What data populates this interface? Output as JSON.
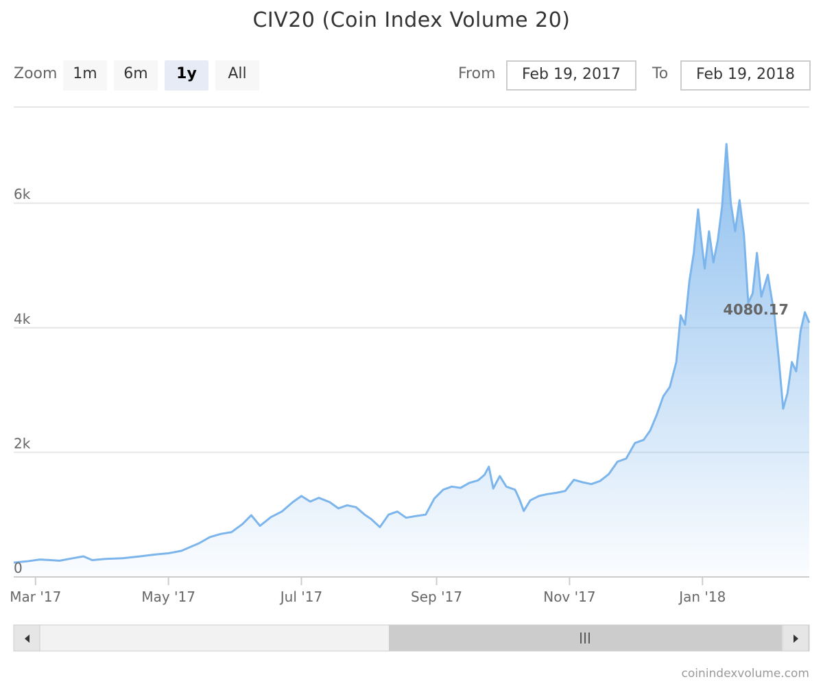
{
  "title": "CIV20 (Coin Index Volume 20)",
  "range_selector": {
    "zoom_label": "Zoom",
    "buttons": [
      {
        "label": "1m",
        "active": false
      },
      {
        "label": "6m",
        "active": false
      },
      {
        "label": "1y",
        "active": true
      },
      {
        "label": "All",
        "active": false
      }
    ],
    "from_label": "From",
    "from_value": "Feb 19, 2017",
    "to_label": "To",
    "to_value": "Feb 19, 2018"
  },
  "credits": "coinindexvolume.com",
  "colors": {
    "line": "#7cb5ec",
    "area_top": "#8fbce8",
    "grid": "#e6e6e6",
    "axis_label": "#666666"
  },
  "chart_data": {
    "type": "area",
    "title": "CIV20 (Coin Index Volume 20)",
    "xlabel": "",
    "ylabel": "",
    "ylim": [
      0,
      7500
    ],
    "xlim": [
      "2017-02-19",
      "2018-02-19"
    ],
    "y_ticks": [
      {
        "value": 0,
        "label": "0"
      },
      {
        "value": 2000,
        "label": "2k"
      },
      {
        "value": 4000,
        "label": "4k"
      },
      {
        "value": 6000,
        "label": "6k"
      }
    ],
    "x_ticks": [
      {
        "date": "2017-03-01",
        "label": "Mar '17"
      },
      {
        "date": "2017-05-01",
        "label": "May '17"
      },
      {
        "date": "2017-07-01",
        "label": "Jul '17"
      },
      {
        "date": "2017-09-01",
        "label": "Sep '17"
      },
      {
        "date": "2017-11-01",
        "label": "Nov '17"
      },
      {
        "date": "2018-01-01",
        "label": "Jan '18"
      }
    ],
    "last_value_label": "4080.17",
    "grid": true,
    "legend": "none",
    "series": [
      {
        "values": [
          [
            "2017-02-19",
            230
          ],
          [
            "2017-02-25",
            250
          ],
          [
            "2017-03-03",
            280
          ],
          [
            "2017-03-08",
            270
          ],
          [
            "2017-03-12",
            260
          ],
          [
            "2017-03-18",
            300
          ],
          [
            "2017-03-23",
            330
          ],
          [
            "2017-03-27",
            270
          ],
          [
            "2017-04-02",
            290
          ],
          [
            "2017-04-10",
            300
          ],
          [
            "2017-04-18",
            330
          ],
          [
            "2017-04-25",
            360
          ],
          [
            "2017-05-01",
            380
          ],
          [
            "2017-05-07",
            420
          ],
          [
            "2017-05-11",
            480
          ],
          [
            "2017-05-15",
            540
          ],
          [
            "2017-05-20",
            640
          ],
          [
            "2017-05-25",
            690
          ],
          [
            "2017-05-30",
            720
          ],
          [
            "2017-06-04",
            850
          ],
          [
            "2017-06-08",
            990
          ],
          [
            "2017-06-12",
            820
          ],
          [
            "2017-06-17",
            960
          ],
          [
            "2017-06-22",
            1050
          ],
          [
            "2017-06-27",
            1200
          ],
          [
            "2017-07-01",
            1300
          ],
          [
            "2017-07-05",
            1210
          ],
          [
            "2017-07-09",
            1270
          ],
          [
            "2017-07-14",
            1200
          ],
          [
            "2017-07-18",
            1100
          ],
          [
            "2017-07-22",
            1150
          ],
          [
            "2017-07-26",
            1120
          ],
          [
            "2017-07-30",
            1000
          ],
          [
            "2017-08-02",
            930
          ],
          [
            "2017-08-06",
            800
          ],
          [
            "2017-08-10",
            1000
          ],
          [
            "2017-08-14",
            1050
          ],
          [
            "2017-08-18",
            950
          ],
          [
            "2017-08-23",
            980
          ],
          [
            "2017-08-27",
            1000
          ],
          [
            "2017-08-31",
            1260
          ],
          [
            "2017-09-04",
            1400
          ],
          [
            "2017-09-08",
            1450
          ],
          [
            "2017-09-12",
            1430
          ],
          [
            "2017-09-16",
            1510
          ],
          [
            "2017-09-20",
            1550
          ],
          [
            "2017-09-23",
            1640
          ],
          [
            "2017-09-25",
            1770
          ],
          [
            "2017-09-27",
            1420
          ],
          [
            "2017-09-30",
            1620
          ],
          [
            "2017-10-03",
            1450
          ],
          [
            "2017-10-07",
            1400
          ],
          [
            "2017-10-09",
            1250
          ],
          [
            "2017-10-11",
            1060
          ],
          [
            "2017-10-14",
            1230
          ],
          [
            "2017-10-18",
            1300
          ],
          [
            "2017-10-22",
            1330
          ],
          [
            "2017-10-26",
            1350
          ],
          [
            "2017-10-30",
            1380
          ],
          [
            "2017-11-03",
            1560
          ],
          [
            "2017-11-07",
            1520
          ],
          [
            "2017-11-11",
            1490
          ],
          [
            "2017-11-15",
            1540
          ],
          [
            "2017-11-19",
            1650
          ],
          [
            "2017-11-23",
            1850
          ],
          [
            "2017-11-27",
            1900
          ],
          [
            "2017-12-01",
            2150
          ],
          [
            "2017-12-05",
            2200
          ],
          [
            "2017-12-08",
            2350
          ],
          [
            "2017-12-11",
            2600
          ],
          [
            "2017-12-14",
            2900
          ],
          [
            "2017-12-17",
            3050
          ],
          [
            "2017-12-20",
            3450
          ],
          [
            "2017-12-22",
            4200
          ],
          [
            "2017-12-24",
            4050
          ],
          [
            "2017-12-26",
            4750
          ],
          [
            "2017-12-28",
            5200
          ],
          [
            "2017-12-30",
            5900
          ],
          [
            "2017-12-31",
            5550
          ],
          [
            "2018-01-02",
            4950
          ],
          [
            "2018-01-04",
            5550
          ],
          [
            "2018-01-06",
            5050
          ],
          [
            "2018-01-08",
            5400
          ],
          [
            "2018-01-10",
            5950
          ],
          [
            "2018-01-12",
            6950
          ],
          [
            "2018-01-14",
            6000
          ],
          [
            "2018-01-16",
            5550
          ],
          [
            "2018-01-18",
            6050
          ],
          [
            "2018-01-20",
            5500
          ],
          [
            "2018-01-22",
            4400
          ],
          [
            "2018-01-24",
            4550
          ],
          [
            "2018-01-26",
            5200
          ],
          [
            "2018-01-28",
            4500
          ],
          [
            "2018-01-31",
            4850
          ],
          [
            "2018-02-03",
            4200
          ],
          [
            "2018-02-05",
            3500
          ],
          [
            "2018-02-07",
            2700
          ],
          [
            "2018-02-09",
            2950
          ],
          [
            "2018-02-11",
            3450
          ],
          [
            "2018-02-13",
            3300
          ],
          [
            "2018-02-15",
            3950
          ],
          [
            "2018-02-17",
            4250
          ],
          [
            "2018-02-19",
            4080.17
          ]
        ]
      }
    ]
  },
  "navigator": {
    "left_arrow_icon": "arrow-left-icon",
    "right_arrow_icon": "arrow-right-icon",
    "handle_icon": "grip-icon"
  }
}
